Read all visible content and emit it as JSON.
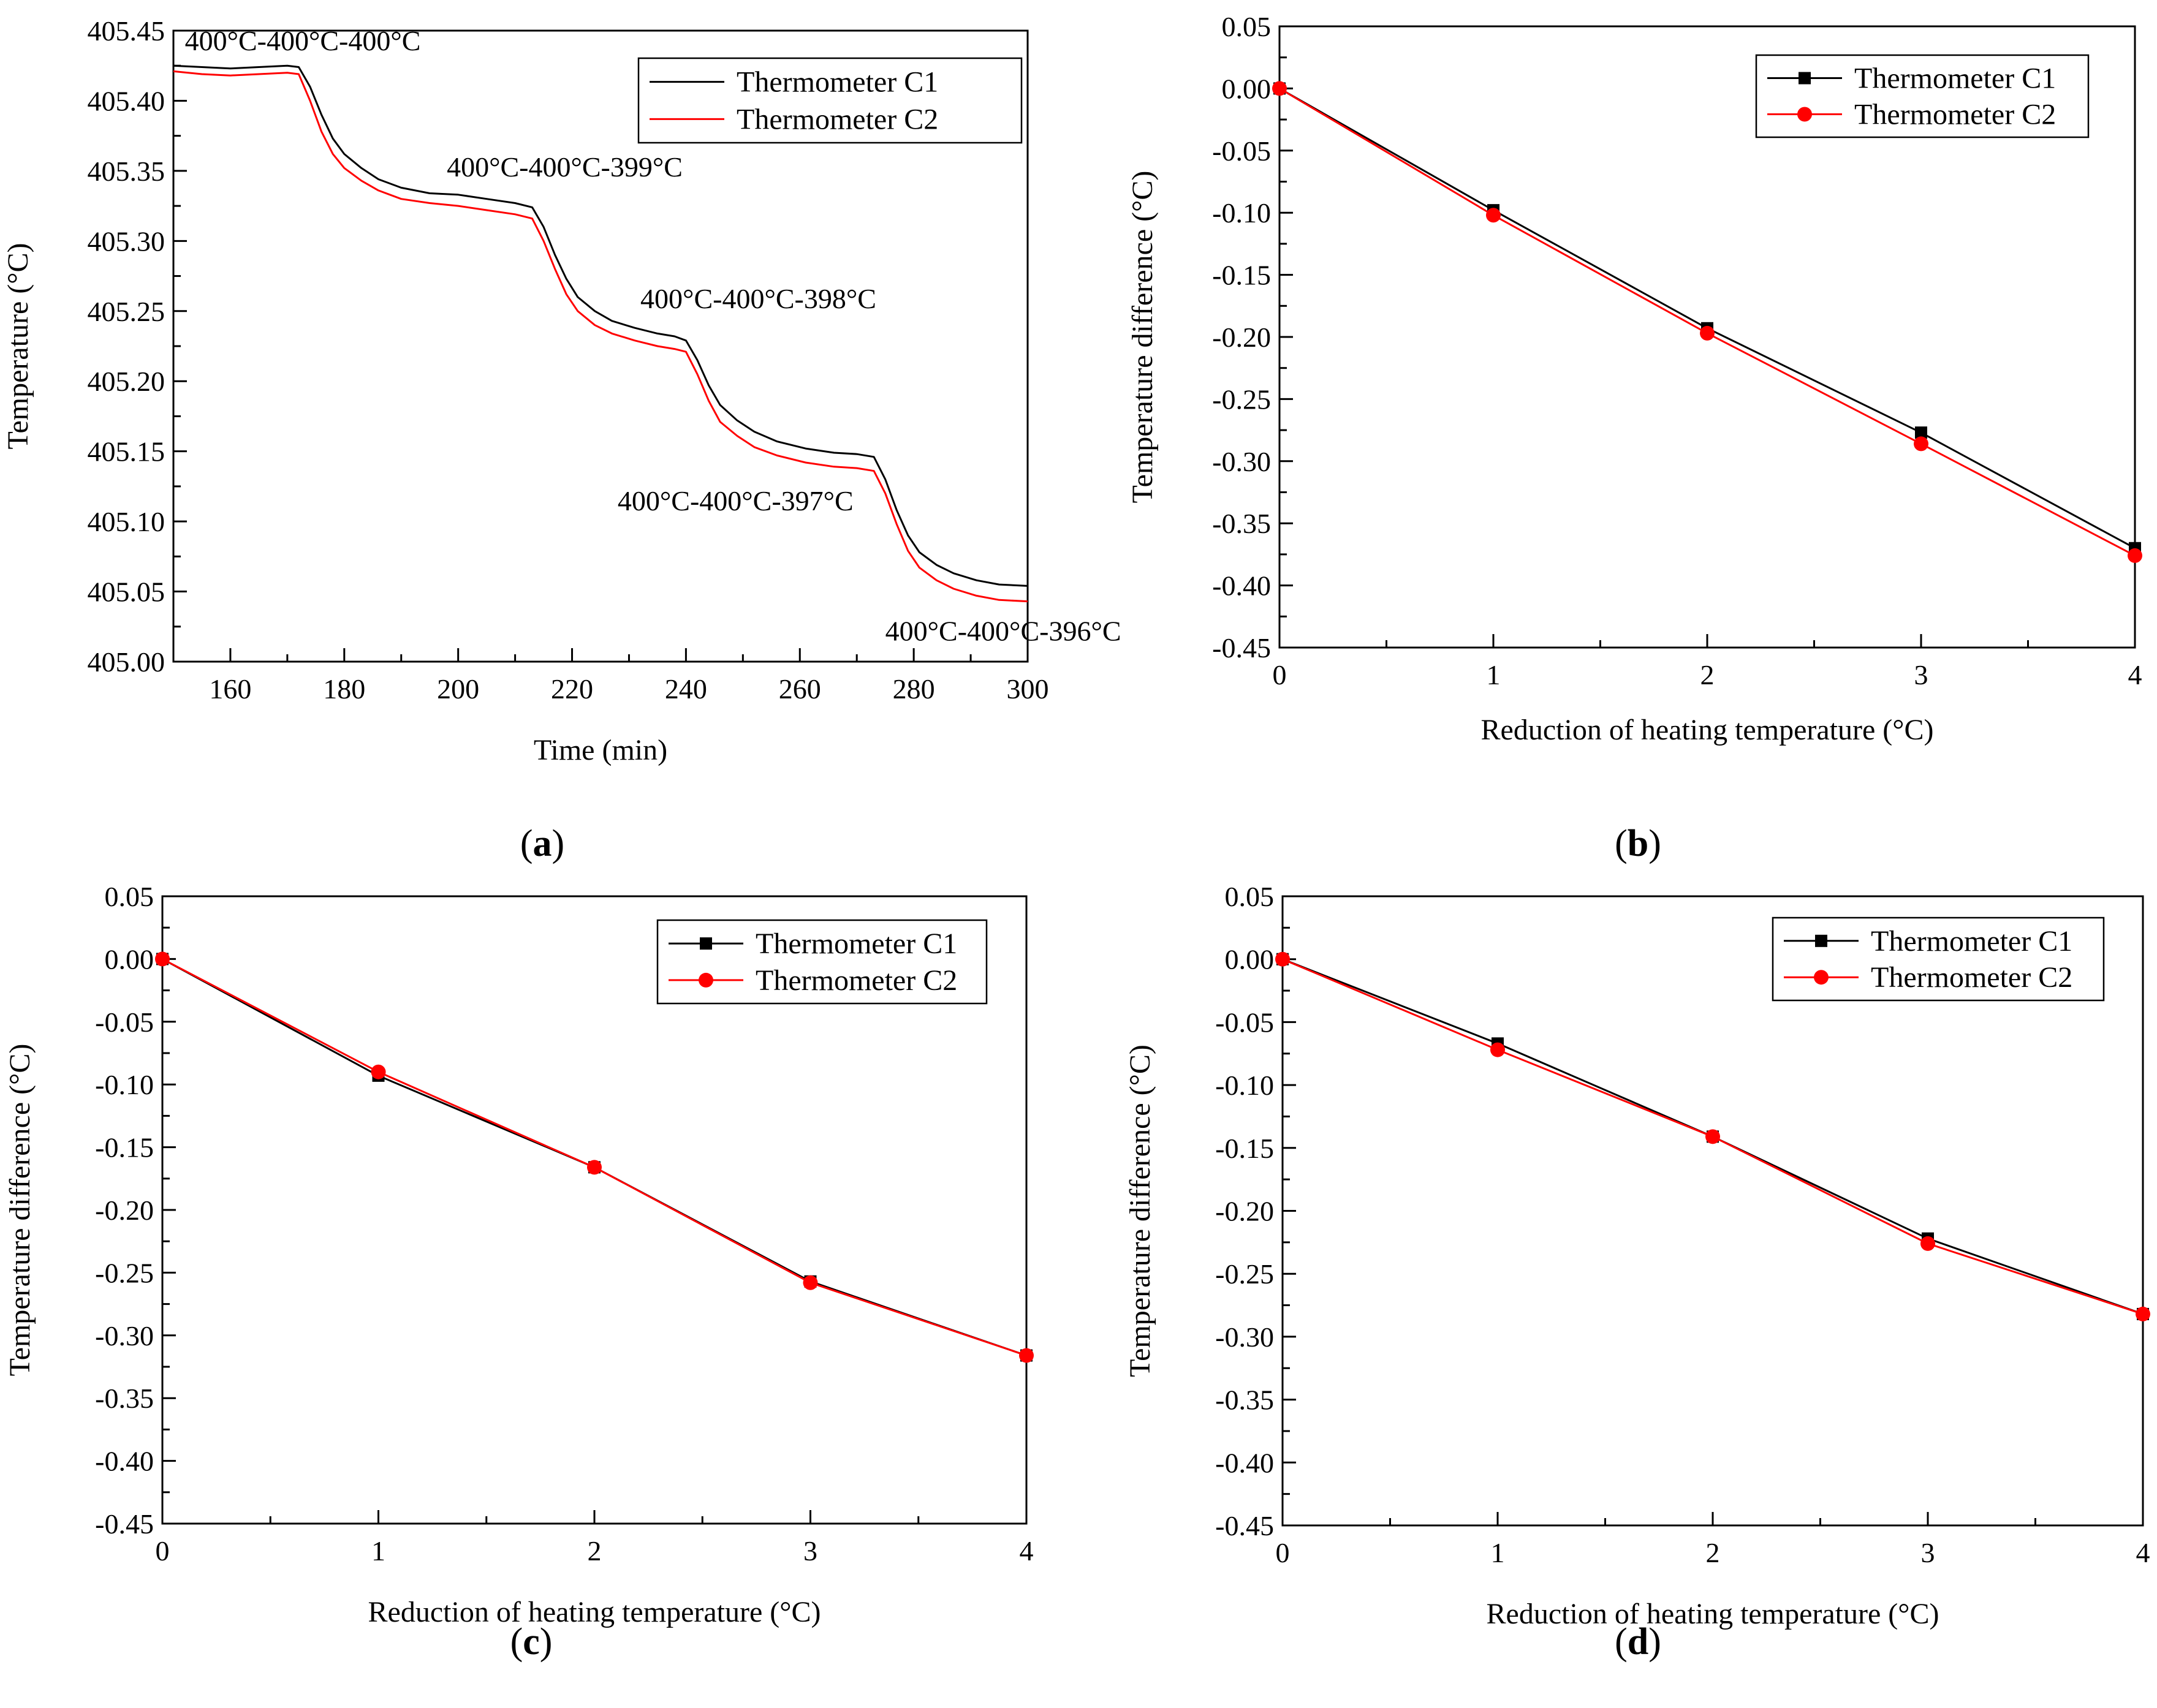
{
  "figure": {
    "panels": [
      "(a)",
      "(b)",
      "(c)",
      "(d)"
    ]
  },
  "colors": {
    "c1": "#000000",
    "c2": "#ff0000"
  },
  "chart_data": [
    {
      "id": "a",
      "type": "line",
      "label": "a",
      "xlabel": "Time (min)",
      "ylabel": "Temperature (°C)",
      "xlim": [
        150,
        300
      ],
      "ylim": [
        405.0,
        405.45
      ],
      "xticks": [
        160,
        180,
        200,
        220,
        240,
        260,
        280,
        300
      ],
      "yticks": [
        405.0,
        405.05,
        405.1,
        405.15,
        405.2,
        405.25,
        405.3,
        405.35,
        405.4,
        405.45
      ],
      "ytick_decimals": 2,
      "xtick_decimals": 0,
      "legend": [
        "Thermometer C1",
        "Thermometer C2"
      ],
      "legend_position": "top-right",
      "annotations": [
        {
          "text": "400°C-400°C-400°C",
          "x": 152,
          "y": 405.436
        },
        {
          "text": "400°C-400°C-399°C",
          "x": 198,
          "y": 405.346
        },
        {
          "text": "400°C-400°C-398°C",
          "x": 232,
          "y": 405.252
        },
        {
          "text": "400°C-400°C-397°C",
          "x": 228,
          "y": 405.108
        },
        {
          "text": "400°C-400°C-396°C",
          "x": 275,
          "y": 405.015
        }
      ],
      "series": [
        {
          "name": "Thermometer C1",
          "x": [
            150,
            155,
            160,
            165,
            170,
            172,
            174,
            176,
            178,
            180,
            183,
            186,
            190,
            195,
            200,
            205,
            210,
            213,
            215,
            217,
            219,
            221,
            224,
            227,
            231,
            235,
            238,
            240,
            242,
            244,
            246,
            249,
            252,
            256,
            261,
            266,
            270,
            273,
            275,
            277,
            279,
            281,
            284,
            287,
            291,
            295,
            300
          ],
          "values": [
            405.425,
            405.424,
            405.423,
            405.424,
            405.425,
            405.424,
            405.41,
            405.39,
            405.373,
            405.362,
            405.352,
            405.344,
            405.338,
            405.334,
            405.333,
            405.33,
            405.327,
            405.324,
            405.31,
            405.29,
            405.273,
            405.26,
            405.25,
            405.243,
            405.238,
            405.234,
            405.232,
            405.229,
            405.215,
            405.197,
            405.183,
            405.172,
            405.164,
            405.157,
            405.152,
            405.149,
            405.148,
            405.146,
            405.13,
            405.108,
            405.09,
            405.078,
            405.069,
            405.063,
            405.058,
            405.055,
            405.054
          ]
        },
        {
          "name": "Thermometer C2",
          "x": [
            150,
            155,
            160,
            165,
            170,
            172,
            174,
            176,
            178,
            180,
            183,
            186,
            190,
            195,
            200,
            205,
            210,
            213,
            215,
            217,
            219,
            221,
            224,
            227,
            231,
            235,
            238,
            240,
            242,
            244,
            246,
            249,
            252,
            256,
            261,
            266,
            270,
            273,
            275,
            277,
            279,
            281,
            284,
            287,
            291,
            295,
            300
          ],
          "values": [
            405.421,
            405.419,
            405.418,
            405.419,
            405.42,
            405.419,
            405.4,
            405.378,
            405.362,
            405.352,
            405.343,
            405.336,
            405.33,
            405.327,
            405.325,
            405.322,
            405.319,
            405.316,
            405.3,
            405.28,
            405.262,
            405.25,
            405.24,
            405.234,
            405.229,
            405.225,
            405.223,
            405.221,
            405.205,
            405.186,
            405.171,
            405.161,
            405.153,
            405.147,
            405.142,
            405.139,
            405.138,
            405.136,
            405.12,
            405.098,
            405.079,
            405.067,
            405.058,
            405.052,
            405.047,
            405.044,
            405.043
          ]
        }
      ]
    },
    {
      "id": "b",
      "type": "line",
      "label": "b",
      "xlabel": "Reduction of heating temperature (°C)",
      "ylabel": "Temperature difference (°C)",
      "xlim": [
        0,
        4
      ],
      "ylim": [
        -0.45,
        0.05
      ],
      "xticks": [
        0,
        1,
        2,
        3,
        4
      ],
      "yticks": [
        0.05,
        0.0,
        -0.05,
        -0.1,
        -0.15,
        -0.2,
        -0.25,
        -0.3,
        -0.35,
        -0.4,
        -0.45
      ],
      "ytick_decimals": 2,
      "xtick_decimals": 0,
      "legend": [
        "Thermometer C1",
        "Thermometer C2"
      ],
      "legend_position": "top-right",
      "series": [
        {
          "name": "Thermometer C1",
          "marker": "square",
          "x": [
            0,
            1,
            2,
            3,
            4
          ],
          "values": [
            0.0,
            -0.098,
            -0.193,
            -0.277,
            -0.37
          ]
        },
        {
          "name": "Thermometer C2",
          "marker": "circle",
          "x": [
            0,
            1,
            2,
            3,
            4
          ],
          "values": [
            0.0,
            -0.102,
            -0.197,
            -0.286,
            -0.376
          ]
        }
      ]
    },
    {
      "id": "c",
      "type": "line",
      "label": "c",
      "xlabel": "Reduction of heating temperature (°C)",
      "ylabel": "Temperature difference (°C)",
      "xlim": [
        0,
        4
      ],
      "ylim": [
        -0.45,
        0.05
      ],
      "xticks": [
        0,
        1,
        2,
        3,
        4
      ],
      "yticks": [
        0.05,
        0.0,
        -0.05,
        -0.1,
        -0.15,
        -0.2,
        -0.25,
        -0.3,
        -0.35,
        -0.4,
        -0.45
      ],
      "ytick_decimals": 2,
      "xtick_decimals": 0,
      "legend": [
        "Thermometer C1",
        "Thermometer C2"
      ],
      "legend_position": "top-right",
      "series": [
        {
          "name": "Thermometer C1",
          "marker": "square",
          "x": [
            0,
            1,
            2,
            3,
            4
          ],
          "values": [
            0.0,
            -0.093,
            -0.166,
            -0.257,
            -0.316
          ]
        },
        {
          "name": "Thermometer C2",
          "marker": "circle",
          "x": [
            0,
            1,
            2,
            3,
            4
          ],
          "values": [
            0.0,
            -0.09,
            -0.166,
            -0.258,
            -0.316
          ]
        }
      ]
    },
    {
      "id": "d",
      "type": "line",
      "label": "d",
      "xlabel": "Reduction of heating temperature (°C)",
      "ylabel": "Temperature difference (°C)",
      "xlim": [
        0,
        4
      ],
      "ylim": [
        -0.45,
        0.05
      ],
      "xticks": [
        0,
        1,
        2,
        3,
        4
      ],
      "yticks": [
        0.05,
        0.0,
        -0.05,
        -0.1,
        -0.15,
        -0.2,
        -0.25,
        -0.3,
        -0.35,
        -0.4,
        -0.45
      ],
      "ytick_decimals": 2,
      "xtick_decimals": 0,
      "legend": [
        "Thermometer C1",
        "Thermometer C2"
      ],
      "legend_position": "top-right",
      "series": [
        {
          "name": "Thermometer C1",
          "marker": "square",
          "x": [
            0,
            1,
            2,
            3,
            4
          ],
          "values": [
            0.0,
            -0.067,
            -0.141,
            -0.222,
            -0.282
          ]
        },
        {
          "name": "Thermometer C2",
          "marker": "circle",
          "x": [
            0,
            1,
            2,
            3,
            4
          ],
          "values": [
            0.0,
            -0.072,
            -0.141,
            -0.226,
            -0.282
          ]
        }
      ]
    }
  ]
}
